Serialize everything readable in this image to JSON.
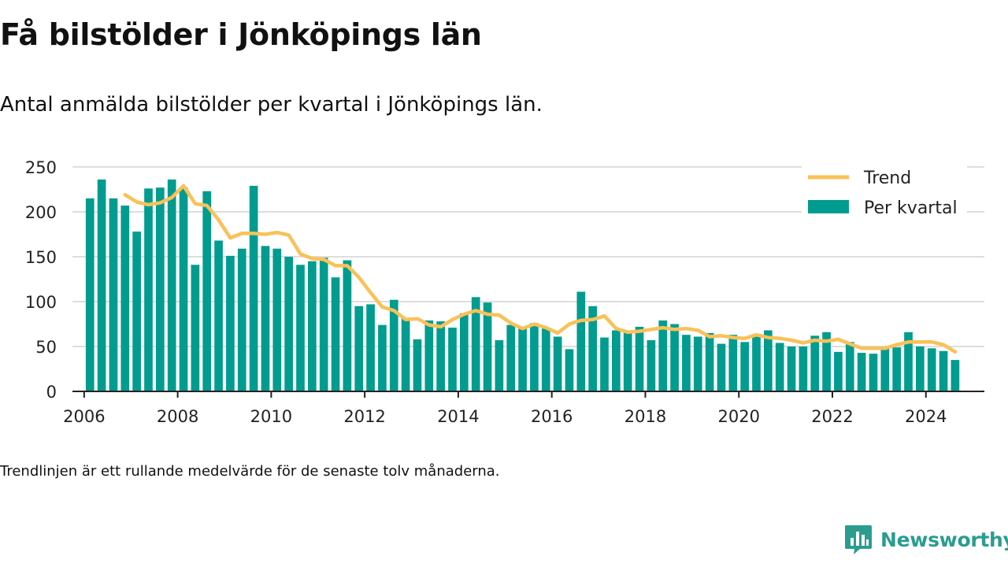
{
  "title": "Få bilstölder i Jönköpings län",
  "subtitle": "Antal anmälda bilstölder per kvartal i Jönköpings län.",
  "footnote": "Trendlinjen är ett rullande medelvärde för de senaste tolv månaderna.",
  "logo": {
    "text": "Newsworthy",
    "icon": "bar-chart-icon",
    "color": "#2a9d8f"
  },
  "colors": {
    "bars": "#009c8f",
    "trend": "#f9c158",
    "grid": "#dddddd",
    "axis": "#222222"
  },
  "chart_data": {
    "type": "bar",
    "title": "Få bilstölder i Jönköpings län",
    "subtitle": "Antal anmälda bilstölder per kvartal i Jönköpings län.",
    "xlabel": "",
    "ylabel": "",
    "ylim": [
      0,
      250
    ],
    "yticks": [
      0,
      50,
      100,
      150,
      200,
      250
    ],
    "xticks": [
      "2006",
      "2008",
      "2010",
      "2012",
      "2014",
      "2016",
      "2018",
      "2020",
      "2022",
      "2024"
    ],
    "xlim": [
      "2005Q4",
      "2025Q2"
    ],
    "grid": true,
    "legend_position": "top-right",
    "legend": [
      {
        "label": "Trend",
        "kind": "line"
      },
      {
        "label": "Per kvartal",
        "kind": "bar"
      }
    ],
    "categories": [
      "2006Q1",
      "2006Q2",
      "2006Q3",
      "2006Q4",
      "2007Q1",
      "2007Q2",
      "2007Q3",
      "2007Q4",
      "2008Q1",
      "2008Q2",
      "2008Q3",
      "2008Q4",
      "2009Q1",
      "2009Q2",
      "2009Q3",
      "2009Q4",
      "2010Q1",
      "2010Q2",
      "2010Q3",
      "2010Q4",
      "2011Q1",
      "2011Q2",
      "2011Q3",
      "2011Q4",
      "2012Q1",
      "2012Q2",
      "2012Q3",
      "2012Q4",
      "2013Q1",
      "2013Q2",
      "2013Q3",
      "2013Q4",
      "2014Q1",
      "2014Q2",
      "2014Q3",
      "2014Q4",
      "2015Q1",
      "2015Q2",
      "2015Q3",
      "2015Q4",
      "2016Q1",
      "2016Q2",
      "2016Q3",
      "2016Q4",
      "2017Q1",
      "2017Q2",
      "2017Q3",
      "2017Q4",
      "2018Q1",
      "2018Q2",
      "2018Q3",
      "2018Q4",
      "2019Q1",
      "2019Q2",
      "2019Q3",
      "2019Q4",
      "2020Q1",
      "2020Q2",
      "2020Q3",
      "2020Q4",
      "2021Q1",
      "2021Q2",
      "2021Q3",
      "2021Q4",
      "2022Q1",
      "2022Q2",
      "2022Q3",
      "2022Q4",
      "2023Q1",
      "2023Q2",
      "2023Q3",
      "2023Q4",
      "2024Q1",
      "2024Q2",
      "2024Q3"
    ],
    "series": [
      {
        "name": "Per kvartal",
        "type": "bar",
        "values": [
          215,
          236,
          215,
          207,
          178,
          226,
          227,
          236,
          227,
          141,
          223,
          168,
          151,
          159,
          229,
          162,
          159,
          150,
          141,
          145,
          149,
          127,
          146,
          95,
          97,
          74,
          102,
          82,
          58,
          79,
          78,
          71,
          87,
          105,
          99,
          57,
          74,
          70,
          76,
          70,
          61,
          47,
          111,
          95,
          60,
          68,
          66,
          72,
          57,
          79,
          75,
          63,
          61,
          65,
          53,
          63,
          55,
          63,
          68,
          54,
          50,
          50,
          62,
          66,
          44,
          55,
          43,
          42,
          50,
          49,
          66,
          50,
          48,
          45,
          35
        ]
      },
      {
        "name": "Trend",
        "type": "line",
        "values": [
          null,
          null,
          null,
          219,
          211,
          208,
          210,
          216,
          229,
          209,
          207,
          191,
          171,
          176,
          176,
          175,
          177,
          174,
          153,
          148,
          147,
          140,
          140,
          127,
          110,
          94,
          90,
          80,
          81,
          74,
          72,
          80,
          86,
          90,
          86,
          85,
          76,
          70,
          75,
          71,
          65,
          75,
          79,
          80,
          84,
          70,
          66,
          67,
          69,
          71,
          69,
          70,
          68,
          61,
          62,
          60,
          59,
          63,
          60,
          59,
          57,
          54,
          57,
          56,
          58,
          53,
          48,
          48,
          48,
          52,
          55,
          55,
          55,
          52,
          44
        ]
      }
    ]
  }
}
